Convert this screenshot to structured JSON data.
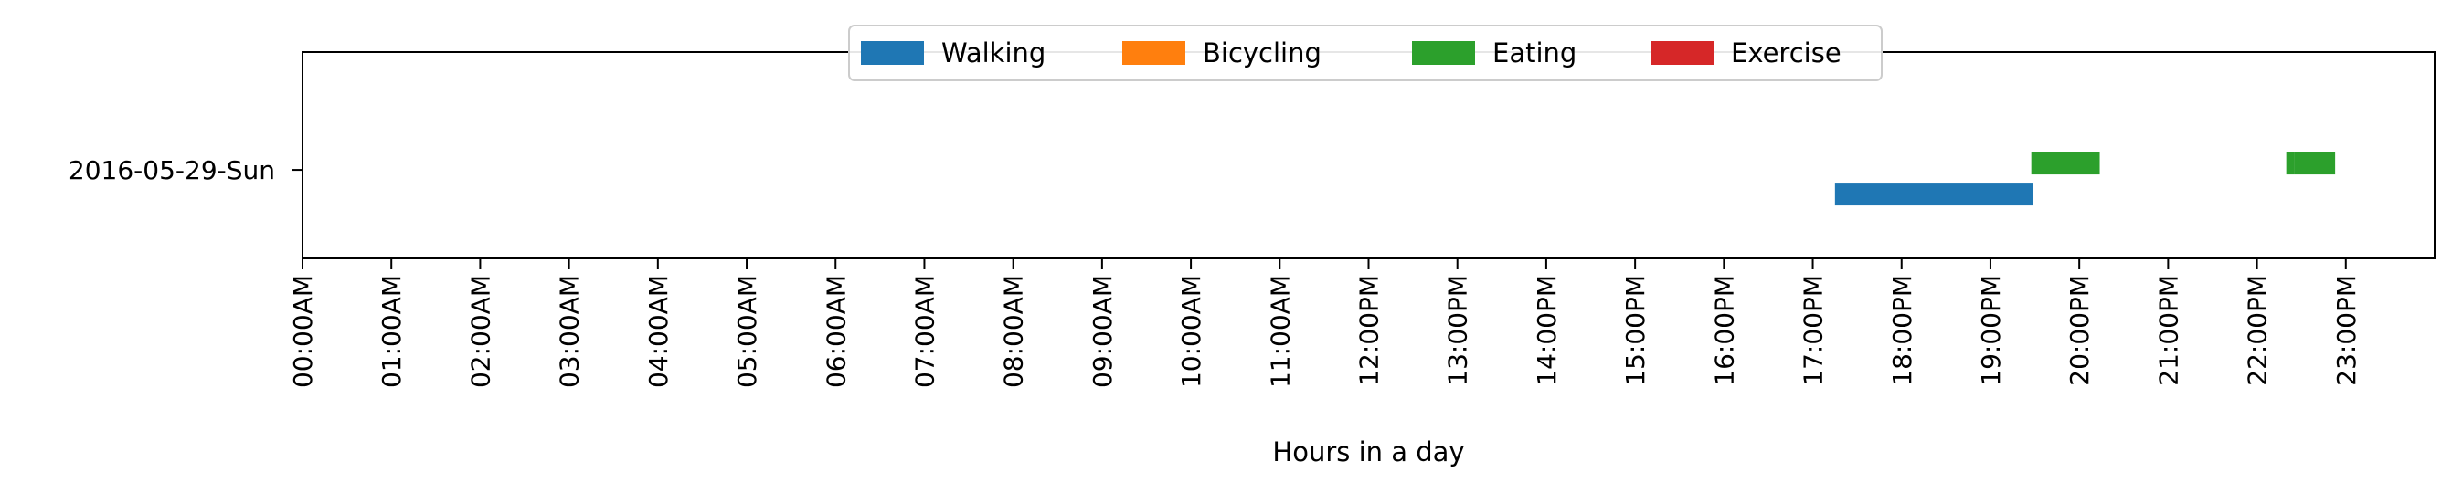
{
  "chart_data": {
    "type": "gantt",
    "title": "",
    "xlabel": "Hours in a day",
    "ylabel": "",
    "xlim": [
      0,
      24
    ],
    "x_unit": "hours",
    "x_ticks": [
      {
        "value": 0,
        "label": "00:00AM"
      },
      {
        "value": 1,
        "label": "01:00AM"
      },
      {
        "value": 2,
        "label": "02:00AM"
      },
      {
        "value": 3,
        "label": "03:00AM"
      },
      {
        "value": 4,
        "label": "04:00AM"
      },
      {
        "value": 5,
        "label": "05:00AM"
      },
      {
        "value": 6,
        "label": "06:00AM"
      },
      {
        "value": 7,
        "label": "07:00AM"
      },
      {
        "value": 8,
        "label": "08:00AM"
      },
      {
        "value": 9,
        "label": "09:00AM"
      },
      {
        "value": 10,
        "label": "10:00AM"
      },
      {
        "value": 11,
        "label": "11:00AM"
      },
      {
        "value": 12,
        "label": "12:00PM"
      },
      {
        "value": 13,
        "label": "13:00PM"
      },
      {
        "value": 14,
        "label": "14:00PM"
      },
      {
        "value": 15,
        "label": "15:00PM"
      },
      {
        "value": 16,
        "label": "16:00PM"
      },
      {
        "value": 17,
        "label": "17:00PM"
      },
      {
        "value": 18,
        "label": "18:00PM"
      },
      {
        "value": 19,
        "label": "19:00PM"
      },
      {
        "value": 20,
        "label": "20:00PM"
      },
      {
        "value": 21,
        "label": "21:00PM"
      },
      {
        "value": 22,
        "label": "22:00PM"
      },
      {
        "value": 23,
        "label": "23:00PM"
      }
    ],
    "days": [
      "2016-05-29-Sun"
    ],
    "legend": {
      "placement": "top-center",
      "entries": [
        {
          "name": "Walking",
          "color": "#1f77b4"
        },
        {
          "name": "Bicycling",
          "color": "#ff7f0e"
        },
        {
          "name": "Eating",
          "color": "#2ca02c"
        },
        {
          "name": "Exercise",
          "color": "#d62728"
        }
      ]
    },
    "series": [
      {
        "name": "Walking",
        "color": "#1f77b4",
        "lane": 0,
        "intervals": [
          [
            17.25,
            19.48
          ]
        ]
      },
      {
        "name": "Bicycling",
        "color": "#ff7f0e",
        "lane": 1,
        "intervals": []
      },
      {
        "name": "Eating",
        "color": "#2ca02c",
        "lane": 2,
        "intervals": [
          [
            19.46,
            20.23
          ],
          [
            22.33,
            22.42
          ],
          [
            22.42,
            22.88
          ]
        ]
      },
      {
        "name": "Exercise",
        "color": "#d62728",
        "lane": 3,
        "intervals": []
      }
    ],
    "grid": false
  }
}
